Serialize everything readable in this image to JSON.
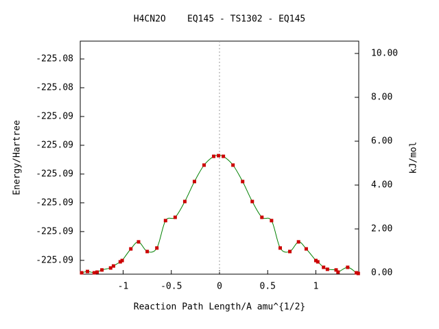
{
  "chart_data": {
    "type": "line",
    "title": "H4CN2O    EQ145 - TS1302 - EQ145",
    "x_label": "Reaction Path Length/A amu^{1/2}",
    "y_label": "Energy/Hartree",
    "y2_label": "kJ/mol",
    "x": [
      -1.43,
      -1.37,
      -1.3,
      -1.27,
      -1.22,
      -1.13,
      -1.1,
      -1.03,
      -1.01,
      -0.92,
      -0.84,
      -0.75,
      -0.65,
      -0.56,
      -0.46,
      -0.36,
      -0.26,
      -0.16,
      -0.06,
      -0.01,
      0.04,
      0.14,
      0.24,
      0.34,
      0.44,
      0.54,
      0.63,
      0.73,
      0.82,
      0.9,
      1.0,
      1.02,
      1.08,
      1.12,
      1.21,
      1.23,
      1.33,
      1.42,
      1.44
    ],
    "series": [
      {
        "color": "#008000",
        "marker_color": "#cc0000",
        "axis": "y2",
        "values": [
          0.0,
          0.06,
          0.0,
          0.03,
          0.13,
          0.22,
          0.31,
          0.5,
          0.56,
          1.09,
          1.41,
          0.97,
          1.13,
          2.38,
          2.53,
          3.25,
          4.16,
          4.91,
          5.31,
          5.34,
          5.31,
          4.91,
          4.16,
          3.25,
          2.53,
          2.38,
          1.13,
          0.97,
          1.41,
          1.09,
          0.56,
          0.5,
          0.25,
          0.16,
          0.13,
          0.03,
          0.25,
          0.0,
          -0.03
        ]
      }
    ],
    "xlim": [
      -1.445,
      1.445
    ],
    "xticks": [
      -1,
      -0.5,
      0,
      0.5,
      1
    ],
    "ylim": [
      -225.08804,
      -225.08399
    ],
    "yticks": [
      {
        "value": -225.0878,
        "label": "-225.09"
      },
      {
        "value": -225.0873,
        "label": "-225.09"
      },
      {
        "value": -225.0868,
        "label": "-225.09"
      },
      {
        "value": -225.0863,
        "label": "-225.09"
      },
      {
        "value": -225.0858,
        "label": "-225.09"
      },
      {
        "value": -225.0853,
        "label": "-225.09"
      },
      {
        "value": -225.0848,
        "label": "-225.08"
      },
      {
        "value": -225.0843,
        "label": "-225.08"
      }
    ],
    "y2lim": [
      -0.0625,
      10.5625
    ],
    "y2ticks": [
      {
        "value": 0,
        "label": "0.00"
      },
      {
        "value": 2,
        "label": "2.00"
      },
      {
        "value": 4,
        "label": "4.00"
      },
      {
        "value": 6,
        "label": "6.00"
      },
      {
        "value": 8,
        "label": "8.00"
      },
      {
        "value": 10,
        "label": "10.00"
      }
    ],
    "vline": 0
  }
}
